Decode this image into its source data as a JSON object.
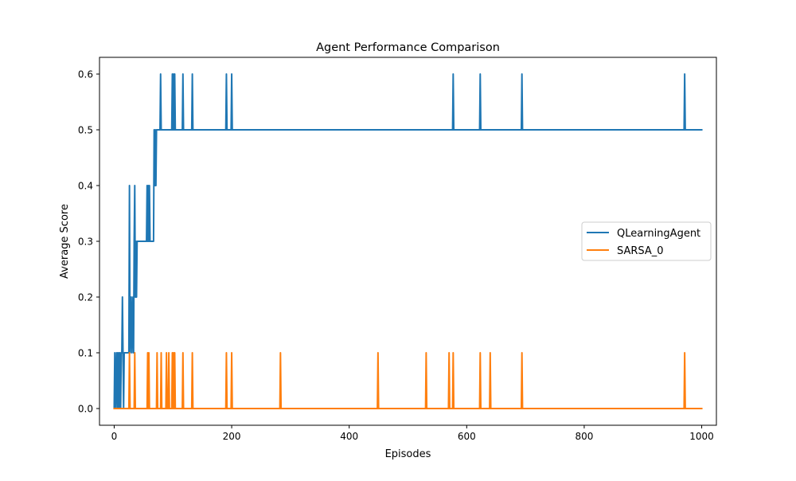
{
  "chart_data": {
    "type": "line",
    "title": "Agent Performance Comparison",
    "xlabel": "Episodes",
    "ylabel": "Average Score",
    "xlim": [
      -25,
      1025
    ],
    "ylim": [
      -0.03,
      0.63
    ],
    "xticks": [
      0,
      200,
      400,
      600,
      800,
      1000
    ],
    "xtick_labels": [
      "0",
      "200",
      "400",
      "600",
      "800",
      "1000"
    ],
    "yticks": [
      0.0,
      0.1,
      0.2,
      0.3,
      0.4,
      0.5,
      0.6
    ],
    "ytick_labels": [
      "0.0",
      "0.1",
      "0.2",
      "0.3",
      "0.4",
      "0.5",
      "0.6"
    ],
    "grid": false,
    "legend_position": "center-right",
    "series": [
      {
        "name": "QLearningAgent",
        "color": "#1f77b4",
        "points": [
          [
            0,
            0.0
          ],
          [
            1,
            0.1
          ],
          [
            2,
            0.0
          ],
          [
            4,
            0.1
          ],
          [
            5,
            0.0
          ],
          [
            6,
            0.1
          ],
          [
            7,
            0.0
          ],
          [
            8,
            0.1
          ],
          [
            9,
            0.0
          ],
          [
            10,
            0.1
          ],
          [
            11,
            0.0
          ],
          [
            12,
            0.1
          ],
          [
            13,
            0.1
          ],
          [
            14,
            0.2
          ],
          [
            15,
            0.1
          ],
          [
            16,
            0.0
          ],
          [
            17,
            0.1
          ],
          [
            25,
            0.1
          ],
          [
            26,
            0.4
          ],
          [
            27,
            0.1
          ],
          [
            29,
            0.2
          ],
          [
            30,
            0.1
          ],
          [
            32,
            0.2
          ],
          [
            33,
            0.1
          ],
          [
            34,
            0.3
          ],
          [
            35,
            0.4
          ],
          [
            36,
            0.2
          ],
          [
            37,
            0.3
          ],
          [
            38,
            0.2
          ],
          [
            39,
            0.3
          ],
          [
            55,
            0.3
          ],
          [
            56,
            0.4
          ],
          [
            57,
            0.3
          ],
          [
            58,
            0.4
          ],
          [
            59,
            0.3
          ],
          [
            60,
            0.4
          ],
          [
            61,
            0.3
          ],
          [
            67,
            0.3
          ],
          [
            68,
            0.5
          ],
          [
            69,
            0.4
          ],
          [
            70,
            0.5
          ],
          [
            71,
            0.4
          ],
          [
            72,
            0.5
          ],
          [
            78,
            0.5
          ],
          [
            79,
            0.6
          ],
          [
            80,
            0.5
          ],
          [
            98,
            0.5
          ],
          [
            99,
            0.6
          ],
          [
            100,
            0.5
          ],
          [
            101,
            0.6
          ],
          [
            102,
            0.5
          ],
          [
            103,
            0.6
          ],
          [
            104,
            0.5
          ],
          [
            116,
            0.5
          ],
          [
            117,
            0.6
          ],
          [
            118,
            0.5
          ],
          [
            132,
            0.5
          ],
          [
            133,
            0.6
          ],
          [
            134,
            0.5
          ],
          [
            190,
            0.5
          ],
          [
            191,
            0.6
          ],
          [
            192,
            0.5
          ],
          [
            199,
            0.5
          ],
          [
            200,
            0.6
          ],
          [
            201,
            0.5
          ],
          [
            576,
            0.5
          ],
          [
            577,
            0.6
          ],
          [
            578,
            0.5
          ],
          [
            622,
            0.5
          ],
          [
            623,
            0.6
          ],
          [
            624,
            0.5
          ],
          [
            693,
            0.5
          ],
          [
            694,
            0.6
          ],
          [
            695,
            0.5
          ],
          [
            970,
            0.5
          ],
          [
            971,
            0.6
          ],
          [
            972,
            0.5
          ],
          [
            1000,
            0.5
          ]
        ]
      },
      {
        "name": "SARSA_0",
        "color": "#ff7f0e",
        "points": [
          [
            0,
            0.0
          ],
          [
            25,
            0.0
          ],
          [
            26,
            0.1
          ],
          [
            27,
            0.0
          ],
          [
            34,
            0.0
          ],
          [
            35,
            0.1
          ],
          [
            36,
            0.0
          ],
          [
            56,
            0.0
          ],
          [
            57,
            0.1
          ],
          [
            58,
            0.0
          ],
          [
            59,
            0.1
          ],
          [
            60,
            0.0
          ],
          [
            72,
            0.0
          ],
          [
            73,
            0.1
          ],
          [
            74,
            0.0
          ],
          [
            79,
            0.0
          ],
          [
            80,
            0.1
          ],
          [
            81,
            0.0
          ],
          [
            88,
            0.0
          ],
          [
            89,
            0.1
          ],
          [
            90,
            0.0
          ],
          [
            92,
            0.0
          ],
          [
            93,
            0.1
          ],
          [
            94,
            0.0
          ],
          [
            98,
            0.0
          ],
          [
            99,
            0.1
          ],
          [
            100,
            0.0
          ],
          [
            101,
            0.1
          ],
          [
            102,
            0.0
          ],
          [
            103,
            0.1
          ],
          [
            104,
            0.0
          ],
          [
            116,
            0.0
          ],
          [
            117,
            0.1
          ],
          [
            118,
            0.0
          ],
          [
            132,
            0.0
          ],
          [
            133,
            0.1
          ],
          [
            134,
            0.0
          ],
          [
            190,
            0.0
          ],
          [
            191,
            0.1
          ],
          [
            192,
            0.0
          ],
          [
            199,
            0.0
          ],
          [
            200,
            0.1
          ],
          [
            201,
            0.0
          ],
          [
            282,
            0.0
          ],
          [
            283,
            0.1
          ],
          [
            284,
            0.0
          ],
          [
            448,
            0.0
          ],
          [
            449,
            0.1
          ],
          [
            450,
            0.0
          ],
          [
            530,
            0.0
          ],
          [
            531,
            0.1
          ],
          [
            532,
            0.0
          ],
          [
            569,
            0.0
          ],
          [
            570,
            0.1
          ],
          [
            571,
            0.0
          ],
          [
            576,
            0.0
          ],
          [
            577,
            0.1
          ],
          [
            578,
            0.0
          ],
          [
            622,
            0.0
          ],
          [
            623,
            0.1
          ],
          [
            624,
            0.0
          ],
          [
            639,
            0.0
          ],
          [
            640,
            0.1
          ],
          [
            641,
            0.0
          ],
          [
            693,
            0.0
          ],
          [
            694,
            0.1
          ],
          [
            695,
            0.0
          ],
          [
            970,
            0.0
          ],
          [
            971,
            0.1
          ],
          [
            972,
            0.0
          ],
          [
            1000,
            0.0
          ]
        ]
      }
    ]
  }
}
